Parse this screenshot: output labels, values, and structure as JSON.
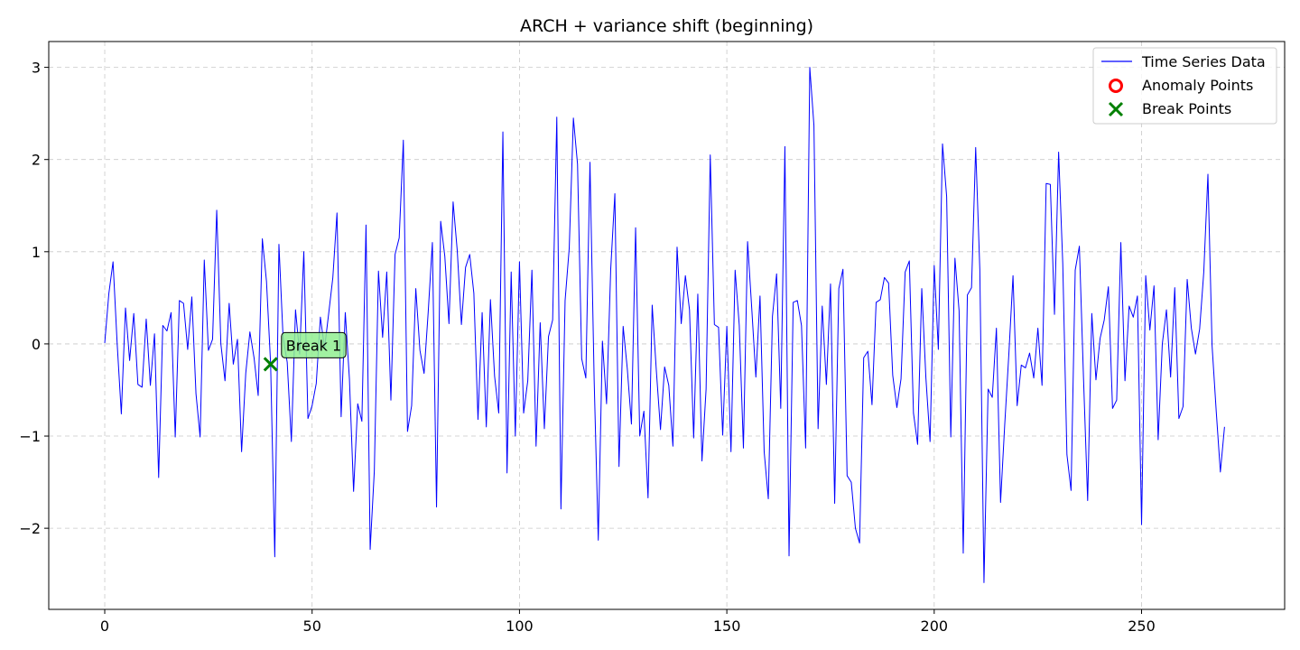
{
  "chart_data": {
    "type": "line",
    "title": "ARCH + variance shift (beginning)",
    "xlabel": "",
    "ylabel": "",
    "xlim": [
      -13.5,
      284.5
    ],
    "ylim": [
      -2.88,
      3.28
    ],
    "xticks": [
      0,
      50,
      100,
      150,
      200,
      250
    ],
    "yticks": [
      -2,
      -1,
      0,
      1,
      2,
      3
    ],
    "xtick_labels": [
      "0",
      "50",
      "100",
      "150",
      "200",
      "250"
    ],
    "ytick_labels": [
      "−2",
      "−1",
      "0",
      "1",
      "2",
      "3"
    ],
    "grid": true,
    "legend_position": "top-right",
    "series": [
      {
        "name": "Time Series Data",
        "color": "#0000ff",
        "values": [
          0.01,
          0.55,
          0.89,
          0.0,
          -0.76,
          0.39,
          -0.18,
          0.33,
          -0.44,
          -0.47,
          0.27,
          -0.45,
          0.11,
          -1.45,
          0.2,
          0.14,
          0.34,
          -1.01,
          0.47,
          0.44,
          -0.06,
          0.51,
          -0.54,
          -1.01,
          0.91,
          -0.07,
          0.05,
          1.45,
          0.0,
          -0.4,
          0.44,
          -0.22,
          0.05,
          -1.17,
          -0.32,
          0.13,
          -0.15,
          -0.56,
          1.14,
          0.68,
          -0.22,
          -2.31,
          1.08,
          0.07,
          -0.2,
          -1.06,
          0.37,
          -0.11,
          1.0,
          -0.81,
          -0.67,
          -0.43,
          0.29,
          -0.05,
          0.33,
          0.72,
          1.42,
          -0.79,
          0.34,
          -0.38,
          -1.6,
          -0.65,
          -0.84,
          1.29,
          -2.23,
          -1.38,
          0.79,
          0.07,
          0.78,
          -0.61,
          0.97,
          1.15,
          2.21,
          -0.95,
          -0.67,
          0.6,
          -0.07,
          -0.32,
          0.35,
          1.1,
          -1.77,
          1.33,
          0.95,
          0.22,
          1.54,
          1.01,
          0.21,
          0.83,
          0.97,
          0.55,
          -0.82,
          0.34,
          -0.9,
          0.48,
          -0.35,
          -0.75,
          2.3,
          -1.4,
          0.78,
          -1.0,
          0.89,
          -0.75,
          -0.4,
          0.8,
          -1.11,
          0.23,
          -0.92,
          0.08,
          0.26,
          2.46,
          -1.79,
          0.47,
          1.04,
          2.45,
          1.95,
          -0.16,
          -0.37,
          1.97,
          -0.38,
          -2.13,
          0.03,
          -0.65,
          0.81,
          1.63,
          -1.33,
          0.19,
          -0.27,
          -0.87,
          1.26,
          -1.0,
          -0.73,
          -1.67,
          0.42,
          -0.29,
          -0.93,
          -0.25,
          -0.45,
          -1.11,
          1.05,
          0.22,
          0.74,
          0.37,
          -1.02,
          0.54,
          -1.27,
          -0.49,
          2.05,
          0.21,
          0.18,
          -0.99,
          0.19,
          -1.17,
          0.8,
          0.2,
          -1.13,
          1.11,
          0.39,
          -0.36,
          0.52,
          -1.17,
          -1.68,
          0.3,
          0.76,
          -0.7,
          2.14,
          -2.3,
          0.45,
          0.47,
          0.2,
          -1.13,
          3.0,
          2.37,
          -0.92,
          0.41,
          -0.44,
          0.65,
          -1.73,
          0.6,
          0.81,
          -1.43,
          -1.5,
          -2.0,
          -2.16,
          -0.15,
          -0.08,
          -0.66,
          0.45,
          0.48,
          0.72,
          0.66,
          -0.34,
          -0.69,
          -0.38,
          0.78,
          0.9,
          -0.75,
          -1.09,
          0.6,
          -0.37,
          -1.06,
          0.85,
          -0.06,
          2.17,
          1.6,
          -1.01,
          0.93,
          0.36,
          -2.27,
          0.53,
          0.61,
          2.13,
          0.81,
          -2.59,
          -0.49,
          -0.58,
          0.17,
          -1.72,
          -0.88,
          -0.11,
          0.74,
          -0.67,
          -0.23,
          -0.26,
          -0.1,
          -0.37,
          0.17,
          -0.45,
          1.74,
          1.73,
          0.32,
          2.08,
          0.87,
          -1.2,
          -1.59,
          0.8,
          1.06,
          -0.37,
          -1.7,
          0.33,
          -0.39,
          0.06,
          0.26,
          0.62,
          -0.7,
          -0.61,
          1.1,
          -0.4,
          0.41,
          0.29,
          0.52,
          -1.96,
          0.74,
          0.15,
          0.63,
          -1.04,
          0.0,
          0.37,
          -0.36,
          0.61,
          -0.81,
          -0.68,
          0.7,
          0.17,
          -0.11,
          0.16,
          0.78,
          1.84,
          -0.02,
          -0.73,
          -1.39,
          -0.9
        ]
      }
    ],
    "anomaly_points": {
      "name": "Anomaly Points",
      "color": "#ff0000",
      "points": []
    },
    "break_points": {
      "name": "Break Points",
      "color": "#008000",
      "points": [
        {
          "x": 40,
          "y": -0.22,
          "label": "Break 1"
        }
      ]
    }
  }
}
